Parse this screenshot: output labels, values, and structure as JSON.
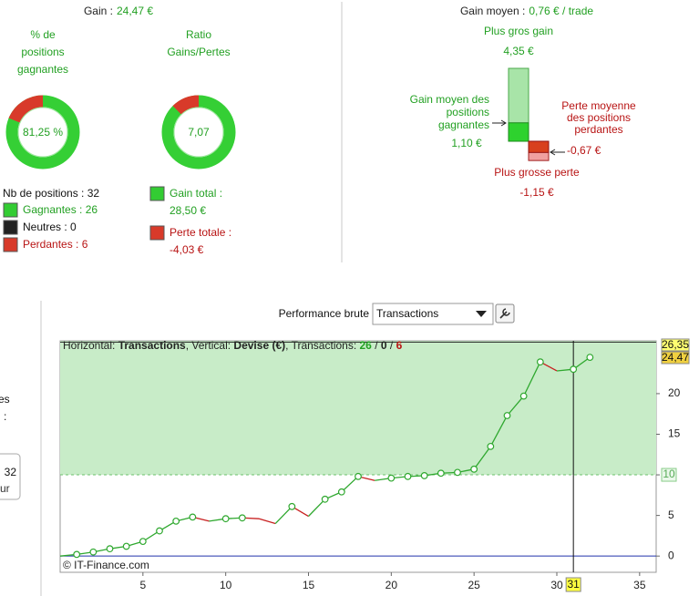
{
  "left_panel": {
    "gain": {
      "label": "Gain :",
      "value": "24,47 €"
    },
    "win_rate": {
      "title": [
        "% de",
        "positions",
        "gagnantes"
      ],
      "value": 81.25,
      "label": "81,25 %"
    },
    "ratio": {
      "title": [
        "Ratio",
        "Gains/Pertes"
      ],
      "value": 7.07,
      "label": "7,07"
    },
    "counts": {
      "total": "Nb de positions : 32",
      "winners": "Gagnantes : 26",
      "neutral": "Neutres : 0",
      "losers": "Perdantes : 6"
    },
    "totals": {
      "gain_label": "Gain total :",
      "gain_value": "28,50 €",
      "loss_label": "Perte totale :",
      "loss_value": "-4,03 €"
    }
  },
  "right_panel": {
    "title": {
      "label": "Gain moyen :",
      "value": "0,76 € / trade"
    },
    "max_gain": {
      "label": "Plus gros gain",
      "value": 4.35,
      "value_label": "4,35 €"
    },
    "avg_gain": {
      "label": [
        "Gain moyen des",
        "positions",
        "gagnantes"
      ],
      "value": 1.1,
      "value_label": "1,10 €"
    },
    "avg_loss": {
      "label": [
        "Perte moyenne",
        "des positions",
        "perdantes"
      ],
      "value": -0.67,
      "value_label": "-0,67 €"
    },
    "max_loss": {
      "label": "Plus grosse perte",
      "value": -1.15,
      "value_label": "-1,15 €"
    }
  },
  "side_fragment": {
    "texts": [
      "es",
      ":"
    ],
    "box": "32",
    "box_sub": "ur"
  },
  "toolbar": {
    "label": "Performance brute",
    "select": "Transactions"
  },
  "chart_data": {
    "type": "line",
    "x": [
      0,
      1,
      2,
      3,
      4,
      5,
      6,
      7,
      8,
      9,
      10,
      11,
      12,
      13,
      14,
      15,
      16,
      17,
      18,
      19,
      20,
      21,
      22,
      23,
      24,
      25,
      26,
      27,
      28,
      29,
      30,
      31,
      32
    ],
    "values": [
      0,
      0.2,
      0.5,
      0.9,
      1.2,
      1.8,
      3.1,
      4.3,
      4.8,
      4.3,
      4.6,
      4.7,
      4.6,
      4.0,
      6.1,
      4.9,
      7.0,
      7.9,
      9.8,
      9.3,
      9.6,
      9.8,
      9.9,
      10.2,
      10.3,
      10.7,
      13.5,
      17.3,
      19.7,
      23.9,
      22.8,
      23.0,
      24.47
    ],
    "rise_color": "#2fa82f",
    "fall_color": "#c82020",
    "xlim": [
      0,
      36
    ],
    "ylim": [
      -2,
      26.5
    ],
    "xticks": [
      5,
      10,
      15,
      20,
      25,
      30,
      35
    ],
    "yticks": [
      0,
      5,
      10,
      15,
      20
    ],
    "threshold": 10,
    "max_line": {
      "value": 26.35,
      "label": "26,35"
    },
    "last_value": {
      "value": 24.47,
      "label": "24,47"
    },
    "cursor": 31,
    "info": [
      "Horizontal: ",
      "Transactions",
      ", Vertical: ",
      "Devise (€)",
      ", Transactions: ",
      "26",
      " / ",
      "0",
      " / ",
      "6"
    ],
    "copyright": "© IT-Finance.com"
  }
}
